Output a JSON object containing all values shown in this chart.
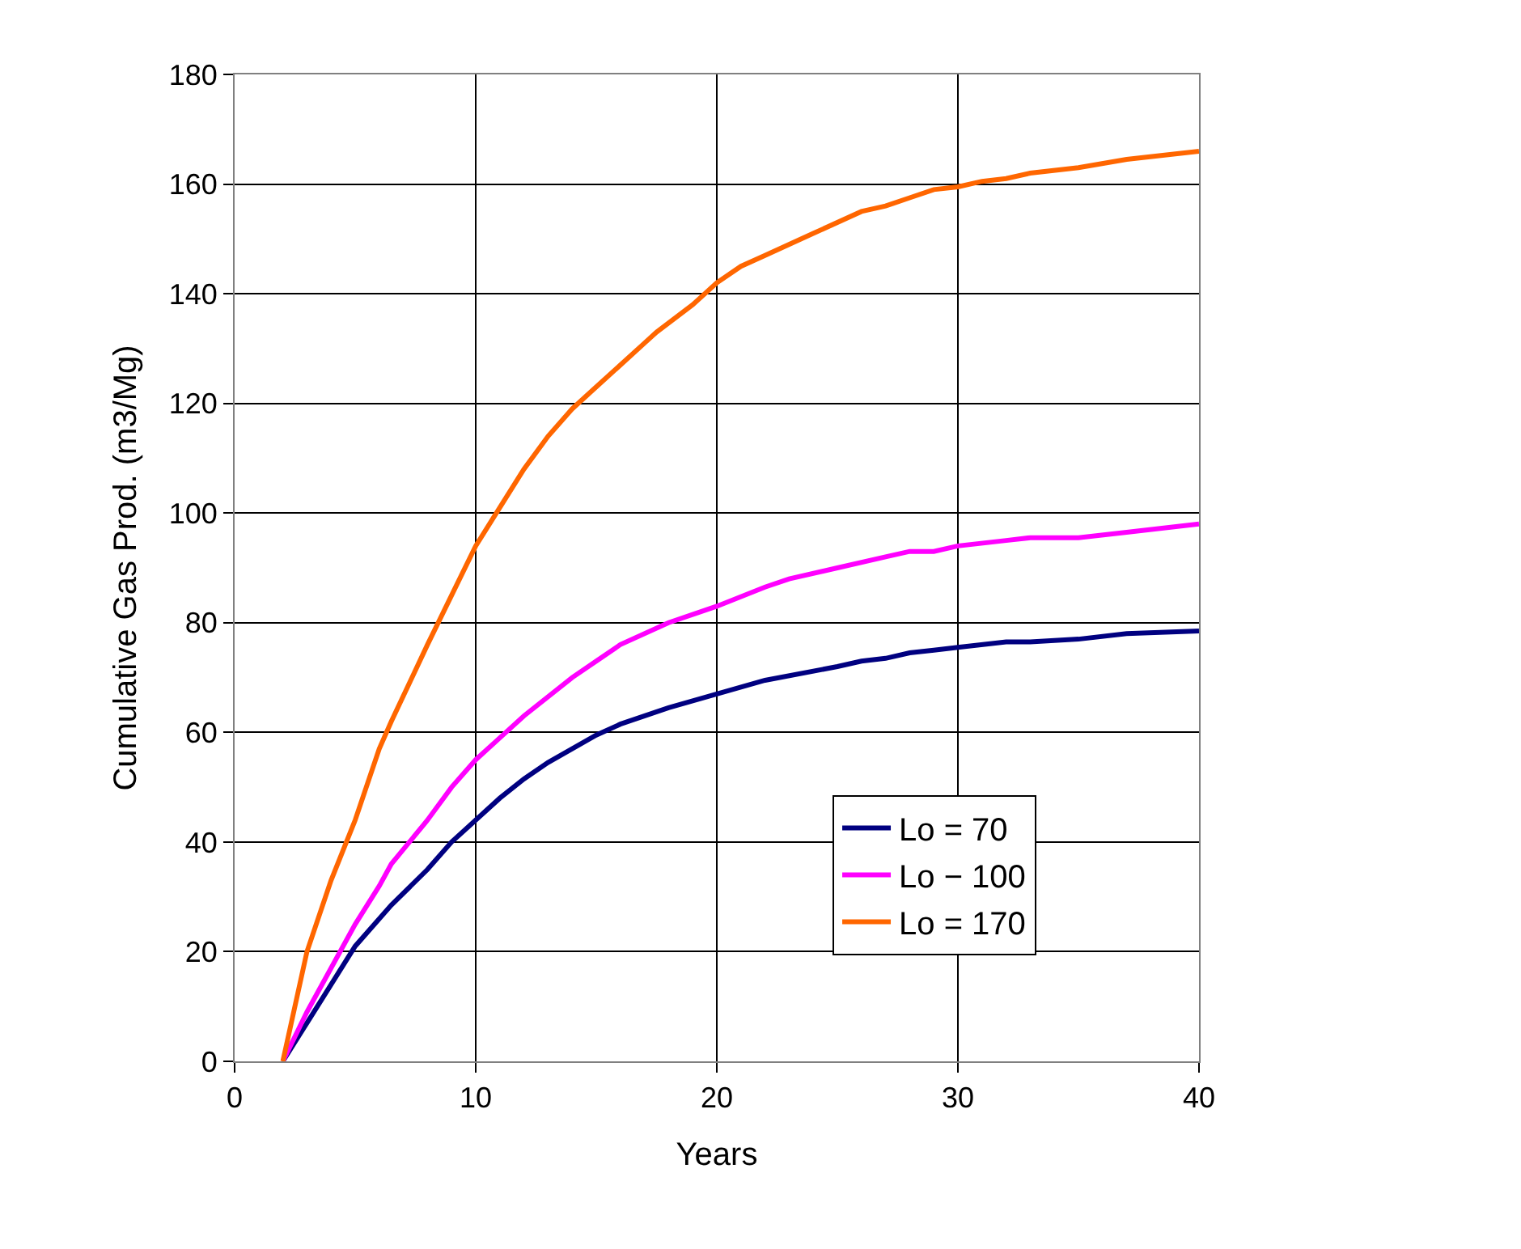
{
  "chart_data": {
    "type": "line",
    "xlabel": "Years",
    "ylabel": "Cumulative Gas Prod. (m3/Mg)",
    "xlim": [
      0,
      40
    ],
    "xticks": [
      0,
      10,
      20,
      30,
      40
    ],
    "ylim": [
      0,
      180
    ],
    "yticks": [
      0,
      20,
      40,
      60,
      80,
      100,
      120,
      140,
      160,
      180
    ],
    "grid": true,
    "legend": "bottom right",
    "marker": "none",
    "line_style": "solid",
    "series": [
      {
        "name": "Lo = 70",
        "color": "#000080",
        "x": [
          2,
          3,
          4,
          5,
          6.5,
          8,
          9,
          10,
          11,
          12,
          13,
          14,
          15,
          16,
          18,
          20,
          22,
          25,
          26,
          27,
          28,
          29,
          30,
          32,
          33,
          35,
          37,
          40
        ],
        "values": [
          0,
          7,
          14,
          21,
          28.5,
          35,
          40,
          44,
          48,
          51.5,
          54.5,
          57,
          59.5,
          61.5,
          64.5,
          67,
          69.5,
          72,
          73,
          73.5,
          74.5,
          75,
          75.5,
          76.5,
          76.5,
          77,
          78,
          78.5
        ]
      },
      {
        "name": "Lo − 100",
        "color": "#ff00ff",
        "x": [
          2,
          3,
          4,
          5,
          6,
          6.5,
          8,
          9,
          10,
          11,
          12,
          14,
          15,
          16,
          18,
          20,
          22,
          23,
          25,
          27,
          28,
          29,
          30,
          32,
          33,
          35,
          37,
          40
        ],
        "values": [
          0,
          9,
          17,
          25,
          32,
          36,
          44,
          50,
          55,
          59,
          63,
          70,
          73,
          76,
          80,
          83,
          86.5,
          88,
          90,
          92,
          93,
          93,
          94,
          95,
          95.5,
          95.5,
          96.5,
          98
        ]
      },
      {
        "name": "Lo = 170",
        "color": "#ff6600",
        "x": [
          2,
          3,
          4,
          5,
          6,
          6.5,
          8,
          9,
          10,
          11,
          12,
          13,
          14,
          15,
          16,
          17,
          17.5,
          19,
          20,
          21,
          22,
          24,
          26,
          27,
          28,
          29,
          30,
          31,
          32,
          33,
          35,
          37,
          40
        ],
        "values": [
          0,
          20,
          33,
          44,
          57,
          62,
          76,
          85,
          94,
          101,
          108,
          114,
          119,
          123,
          127,
          131,
          133,
          138,
          142,
          145,
          147,
          151,
          155,
          156,
          157.5,
          159,
          159.5,
          160.5,
          161,
          162,
          163,
          164.5,
          166
        ]
      }
    ]
  }
}
